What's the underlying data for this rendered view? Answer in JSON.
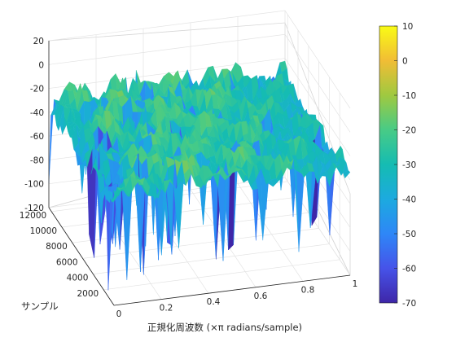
{
  "chart_data": {
    "type": "surface",
    "title": "",
    "xlabel": "正規化周波数 (×π radians/sample)",
    "ylabel": "サンプル",
    "zlabel": "",
    "xlim": [
      0,
      1
    ],
    "ylim": [
      0,
      12500
    ],
    "zlim": [
      -120,
      20
    ],
    "xticks": [
      "0",
      "0.2",
      "0.4",
      "0.6",
      "0.8",
      "1"
    ],
    "yticks": [
      "2000",
      "4000",
      "6000",
      "8000",
      "10000",
      "12000"
    ],
    "zticks": [
      "20",
      "0",
      "-20",
      "-40",
      "-60",
      "-80",
      "-100",
      "-120"
    ],
    "colorbar": {
      "range": [
        -70,
        10
      ],
      "ticks": [
        "10",
        "0",
        "-10",
        "-20",
        "-30",
        "-40",
        "-50",
        "-60",
        "-70"
      ],
      "colormap": "parula",
      "colors": [
        "#3e26a8",
        "#4653e9",
        "#2e87f7",
        "#1caadf",
        "#15bcb2",
        "#48cb86",
        "#9fc940",
        "#f1bd35",
        "#f9fb15"
      ]
    },
    "surface_description_values": {
      "typical_level_db": -25,
      "peak_level_db": 5,
      "deep_notch_db": -115,
      "grid": true
    }
  }
}
